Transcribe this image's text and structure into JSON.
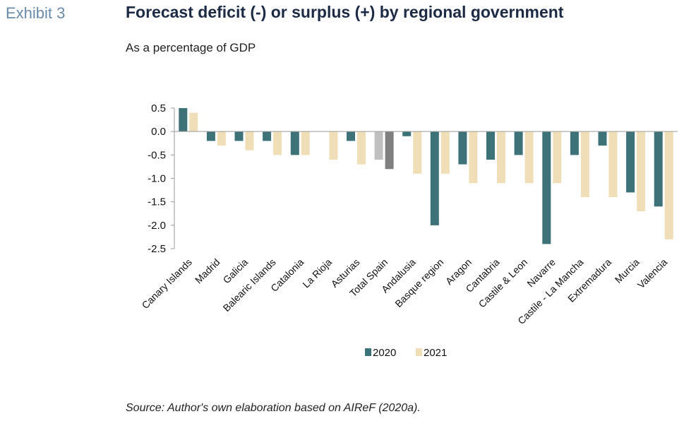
{
  "exhibit_label": "Exhibit 3",
  "source": "Source: Author's own elaboration based on AIReF (2020a).",
  "colors": {
    "series_2020": "#3d7378",
    "series_2021": "#f0dfb6",
    "total_2020": "#7f7f7f",
    "total_2021": "#c0c0c0",
    "title": "#1c2a44",
    "exhibit": "#6b8ba8"
  },
  "chart_data": {
    "type": "bar",
    "title": "Forecast deficit (-) or surplus (+) by regional government",
    "subtitle": "As a percentage of GDP",
    "xlabel": "",
    "ylabel": "",
    "ylim": [
      -2.5,
      0.5
    ],
    "yticks": [
      0.5,
      0.0,
      -0.5,
      -1.0,
      -1.5,
      -2.0,
      -2.5
    ],
    "ytick_labels": [
      "0.5",
      "0.0",
      "-0.5",
      "-1.0",
      "-1.5",
      "-2.0",
      "-2.5"
    ],
    "grid": false,
    "legend_position": "bottom",
    "categories": [
      "Canary Islands",
      "Madrid",
      "Galicia",
      "Balearic Islands",
      "Catalonia",
      "La Rioja",
      "Asturias",
      "Total Spain",
      "Andalusia",
      "Basque region",
      "Aragon",
      "Cantabria",
      "Castile & Leon",
      "Navarre",
      "Castile - La Mancha",
      "Extremadura",
      "Murcia",
      "Valencia"
    ],
    "highlight_category": "Total Spain",
    "series": [
      {
        "name": "2020",
        "values": [
          0.5,
          -0.2,
          -0.2,
          -0.2,
          -0.5,
          0.0,
          -0.2,
          -0.6,
          -0.1,
          -2.0,
          -0.7,
          -0.6,
          -0.5,
          -2.4,
          -0.5,
          -0.3,
          -1.3,
          -1.6
        ]
      },
      {
        "name": "2021",
        "values": [
          0.4,
          -0.3,
          -0.4,
          -0.5,
          -0.5,
          -0.6,
          -0.7,
          -0.8,
          -0.9,
          -0.9,
          -1.1,
          -1.1,
          -1.1,
          -1.1,
          -1.4,
          -1.4,
          -1.7,
          -2.3
        ]
      }
    ]
  }
}
